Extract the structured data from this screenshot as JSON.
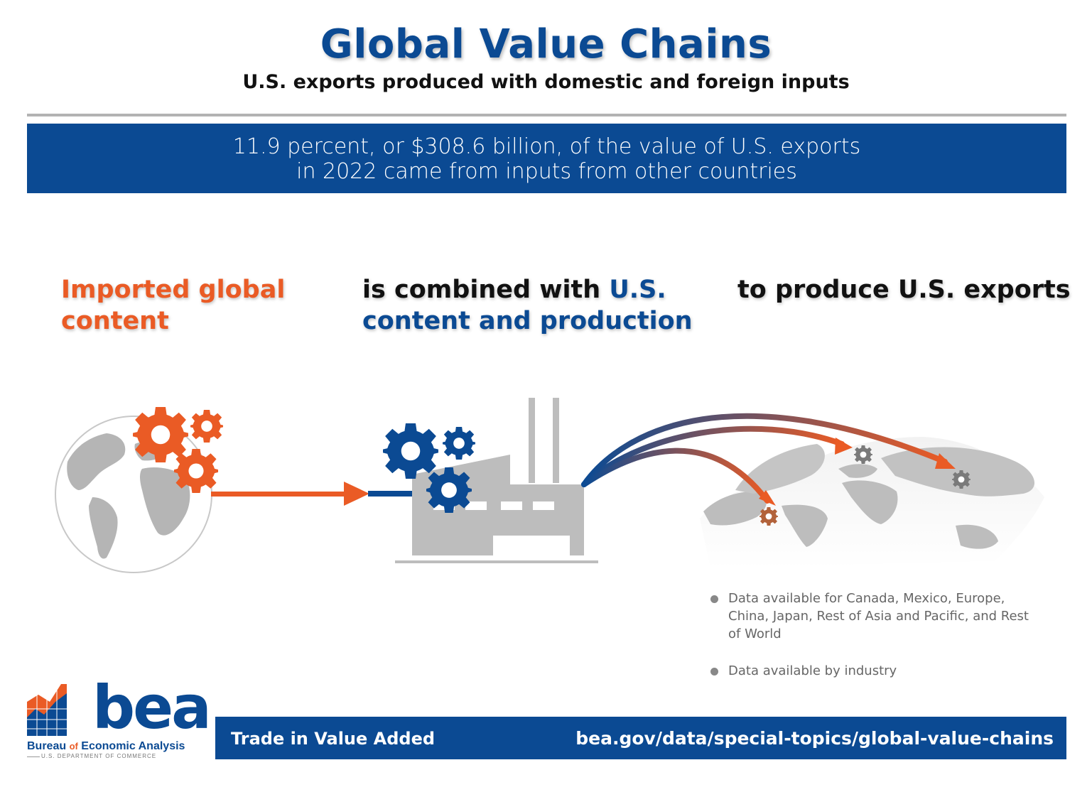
{
  "header": {
    "title": "Global Value Chains",
    "subtitle": "U.S. exports produced with domestic and foreign inputs"
  },
  "banner": {
    "line1": "11.9 percent, or $308.6 billion, of the value of U.S. exports",
    "line2": "in 2022 came from inputs from other countries"
  },
  "steps": {
    "imported": {
      "line1": "Imported global",
      "line2": "content"
    },
    "combined": {
      "prefix": "is combined with ",
      "highlight1": "U.S.",
      "highlight2": "content and production"
    },
    "produce": {
      "prefix": "to produce ",
      "highlight": "U.S. exports"
    }
  },
  "icons": {
    "globe": "globe-icon",
    "gears": "gear-icon",
    "factory": "factory-icon",
    "world_map": "world-map-icon"
  },
  "notes": [
    "Data available for Canada, Mexico, Europe, China, Japan, Rest of Asia and Pacific, and Rest of World",
    "Data available by industry"
  ],
  "footer": {
    "left": "Trade in Value Added",
    "right": "bea.gov/data/special-topics/global-value-chains"
  },
  "logo": {
    "word": "bea",
    "name_part1": "Bureau ",
    "name_of": "of",
    "name_part2": " Economic Analysis",
    "dept": "U.S. DEPARTMENT OF COMMERCE"
  },
  "colors": {
    "brand_blue": "#0b4a93",
    "accent_orange": "#ea5b25",
    "neutral_gray": "#b3b3b3"
  }
}
